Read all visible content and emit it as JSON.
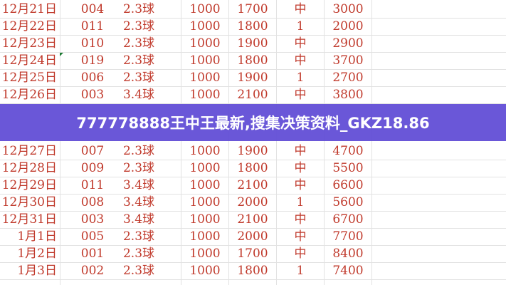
{
  "banner": {
    "title": "777778888王中王最新,搜集决策资料_GKZ18.86",
    "color": "#624ed6"
  },
  "table": {
    "text_color": "#c0392b",
    "rows": [
      {
        "date": "12月21日",
        "code": "004",
        "ball": "2.3球",
        "bet": "1000",
        "ret": "1700",
        "result": "中",
        "total": "3000"
      },
      {
        "date": "12月22日",
        "code": "011",
        "ball": "2.3球",
        "bet": "1000",
        "ret": "1800",
        "result": "1",
        "total": "2000"
      },
      {
        "date": "12月23日",
        "code": "010",
        "ball": "2.3球",
        "bet": "1000",
        "ret": "1900",
        "result": "中",
        "total": "2900"
      },
      {
        "date": "12月24日",
        "code": "019",
        "ball": "2.3球",
        "bet": "1000",
        "ret": "1800",
        "result": "中",
        "total": "3700"
      },
      {
        "date": "12月25日",
        "code": "006",
        "ball": "2.3球",
        "bet": "1000",
        "ret": "1900",
        "result": "1",
        "total": "2700"
      },
      {
        "date": "12月26日",
        "code": "003",
        "ball": "3.4球",
        "bet": "1000",
        "ret": "2100",
        "result": "中",
        "total": "3800"
      },
      {
        "date": "12月27日",
        "code": "007",
        "ball": "2.3球",
        "bet": "1000",
        "ret": "1900",
        "result": "中",
        "total": "4700"
      },
      {
        "date": "12月28日",
        "code": "009",
        "ball": "2.3球",
        "bet": "1000",
        "ret": "1800",
        "result": "中",
        "total": "5500"
      },
      {
        "date": "12月29日",
        "code": "011",
        "ball": "3.4球",
        "bet": "1000",
        "ret": "2100",
        "result": "中",
        "total": "6600"
      },
      {
        "date": "12月30日",
        "code": "008",
        "ball": "3.4球",
        "bet": "1000",
        "ret": "2000",
        "result": "1",
        "total": "5600"
      },
      {
        "date": "12月31日",
        "code": "003",
        "ball": "3.4球",
        "bet": "1000",
        "ret": "2100",
        "result": "中",
        "total": "6700"
      },
      {
        "date": "1月1日",
        "code": "005",
        "ball": "2.3球",
        "bet": "1000",
        "ret": "2000",
        "result": "中",
        "total": "7700"
      },
      {
        "date": "1月2日",
        "code": "001",
        "ball": "2.3球",
        "bet": "1000",
        "ret": "1700",
        "result": "中",
        "total": "8400"
      },
      {
        "date": "1月3日",
        "code": "002",
        "ball": "2.3球",
        "bet": "1000",
        "ret": "1800",
        "result": "1",
        "total": "7400"
      }
    ]
  }
}
